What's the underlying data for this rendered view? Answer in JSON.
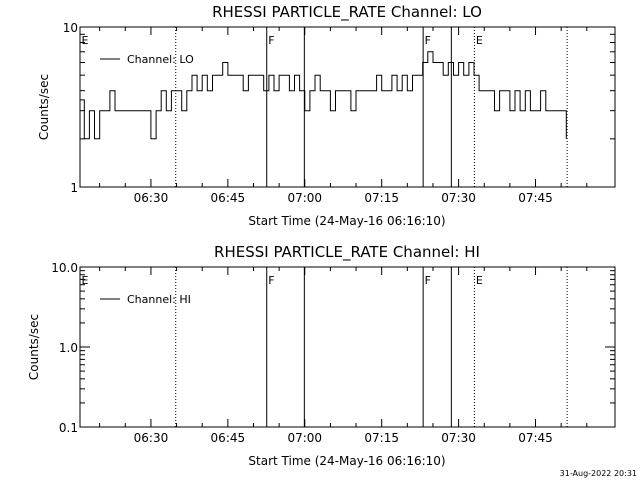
{
  "footer": {
    "timestamp": "31-Aug-2022 20:31"
  },
  "chart_data": [
    {
      "type": "line",
      "title": "RHESSI PARTICLE_RATE Channel: LO",
      "xlabel": "Start Time (24-May-16 06:16:10)",
      "ylabel": "Counts/sec",
      "yscale": "log",
      "ylim": [
        1,
        10
      ],
      "y_ticks": [
        1,
        10
      ],
      "y_tick_labels": [
        "1",
        "10"
      ],
      "xlim": [
        "06:16:10",
        "08:00:30"
      ],
      "x_ticks": [
        "06:30",
        "06:45",
        "07:00",
        "07:15",
        "07:30",
        "07:45"
      ],
      "grid": false,
      "legend": {
        "position": "top-left",
        "entries": [
          "Channel: LO"
        ]
      },
      "flags": [
        {
          "label": "E",
          "time": "06:16:10",
          "style": "none"
        },
        {
          "label": "",
          "time": "06:34:50",
          "style": "dotted"
        },
        {
          "label": "F",
          "time": "06:52:35",
          "style": "solid"
        },
        {
          "label": "",
          "time": "06:59:55",
          "style": "solid"
        },
        {
          "label": "F",
          "time": "07:23:05",
          "style": "solid"
        },
        {
          "label": "",
          "time": "07:28:35",
          "style": "solid"
        },
        {
          "label": "E",
          "time": "07:33:05",
          "style": "dotted"
        },
        {
          "label": "",
          "time": "07:51:10",
          "style": "dotted"
        }
      ],
      "series": [
        {
          "name": "Channel: LO",
          "x": [
            "06:16:10",
            "06:17:00",
            "06:18:00",
            "06:19:00",
            "06:20:00",
            "06:21:00",
            "06:22:00",
            "06:23:00",
            "06:24:00",
            "06:25:00",
            "06:26:00",
            "06:27:00",
            "06:28:00",
            "06:29:00",
            "06:30:00",
            "06:31:00",
            "06:32:00",
            "06:33:00",
            "06:34:00",
            "06:35:00",
            "06:36:00",
            "06:37:00",
            "06:38:00",
            "06:39:00",
            "06:40:00",
            "06:41:00",
            "06:42:00",
            "06:43:00",
            "06:44:00",
            "06:45:00",
            "06:46:00",
            "06:47:00",
            "06:48:00",
            "06:49:00",
            "06:50:00",
            "06:51:00",
            "06:52:00",
            "06:53:00",
            "06:54:00",
            "06:55:00",
            "06:56:00",
            "06:57:00",
            "06:58:00",
            "06:59:00",
            "07:00:00",
            "07:01:00",
            "07:02:00",
            "07:03:00",
            "07:04:00",
            "07:05:00",
            "07:06:00",
            "07:07:00",
            "07:08:00",
            "07:09:00",
            "07:10:00",
            "07:11:00",
            "07:12:00",
            "07:13:00",
            "07:14:00",
            "07:15:00",
            "07:16:00",
            "07:17:00",
            "07:18:00",
            "07:19:00",
            "07:20:00",
            "07:21:00",
            "07:22:00",
            "07:23:00",
            "07:24:00",
            "07:25:00",
            "07:26:00",
            "07:27:00",
            "07:28:00",
            "07:29:00",
            "07:30:00",
            "07:31:00",
            "07:32:00",
            "07:33:00",
            "07:34:00",
            "07:35:00",
            "07:36:00",
            "07:37:00",
            "07:38:00",
            "07:39:00",
            "07:40:00",
            "07:41:00",
            "07:42:00",
            "07:43:00",
            "07:44:00",
            "07:45:00",
            "07:46:00",
            "07:47:00",
            "07:48:00",
            "07:49:00",
            "07:50:00",
            "07:51:00"
          ],
          "y": [
            3.5,
            2,
            3,
            2,
            3,
            3,
            4,
            3,
            3,
            3,
            3,
            3,
            3,
            3,
            2,
            3,
            4,
            3,
            4,
            4,
            3,
            4,
            5,
            4,
            5,
            4,
            5,
            5,
            6,
            5,
            5,
            5,
            4,
            5,
            5,
            5,
            4,
            5,
            4,
            5,
            5,
            4,
            5,
            4,
            3,
            4,
            5,
            4,
            4,
            3,
            4,
            4,
            4,
            3,
            4,
            4,
            4,
            4,
            5,
            4,
            4,
            5,
            4,
            5,
            4,
            5,
            5,
            6,
            7,
            6,
            6,
            5,
            6,
            5,
            6,
            5,
            6,
            5,
            4,
            4,
            4,
            3,
            4,
            4,
            3,
            4,
            3,
            4,
            3,
            3,
            4,
            3,
            3,
            3,
            3,
            2
          ]
        }
      ]
    },
    {
      "type": "line",
      "title": "RHESSI PARTICLE_RATE Channel: HI",
      "xlabel": "Start Time (24-May-16 06:16:10)",
      "ylabel": "Counts/sec",
      "yscale": "log",
      "ylim": [
        0.1,
        10
      ],
      "y_ticks": [
        0.1,
        1,
        10
      ],
      "y_tick_labels": [
        "0.1",
        "1.0",
        "10.0"
      ],
      "xlim": [
        "06:16:10",
        "08:00:30"
      ],
      "x_ticks": [
        "06:30",
        "06:45",
        "07:00",
        "07:15",
        "07:30",
        "07:45"
      ],
      "grid": false,
      "legend": {
        "position": "top-left",
        "entries": [
          "Channel: HI"
        ]
      },
      "flags": [
        {
          "label": "E",
          "time": "06:16:10",
          "style": "none"
        },
        {
          "label": "",
          "time": "06:34:50",
          "style": "dotted"
        },
        {
          "label": "F",
          "time": "06:52:35",
          "style": "solid"
        },
        {
          "label": "",
          "time": "06:59:55",
          "style": "solid"
        },
        {
          "label": "F",
          "time": "07:23:05",
          "style": "solid"
        },
        {
          "label": "",
          "time": "07:28:35",
          "style": "solid"
        },
        {
          "label": "E",
          "time": "07:33:05",
          "style": "dotted"
        },
        {
          "label": "",
          "time": "07:51:10",
          "style": "dotted"
        }
      ],
      "series": [
        {
          "name": "Channel: HI",
          "x": [],
          "y": []
        }
      ]
    }
  ]
}
